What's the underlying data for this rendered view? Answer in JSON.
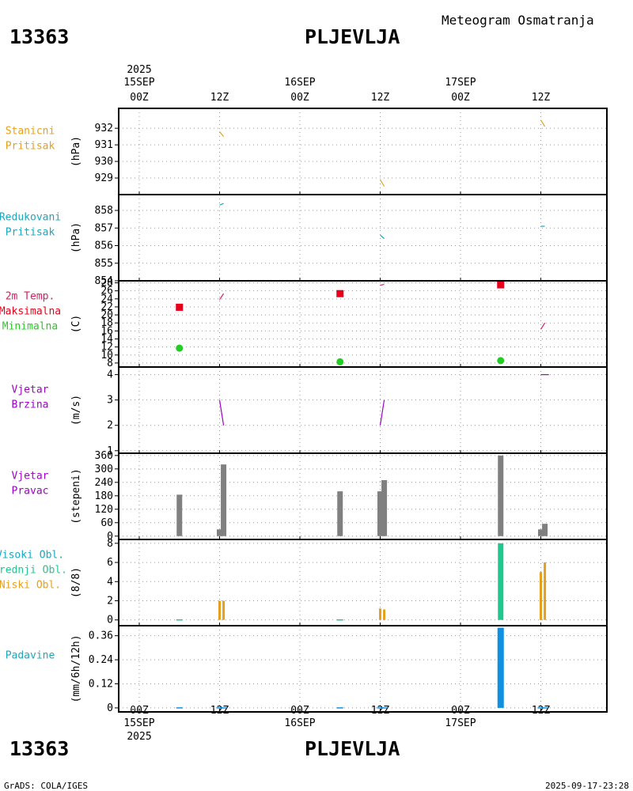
{
  "header": {
    "station_id": "13363",
    "station_name": "PLJEVLJA",
    "subtitle": "Meteogram Osmatranja"
  },
  "footer": {
    "credit": "GrADS: COLA/IGES",
    "timestamp": "2025-09-17-23:28"
  },
  "colors": {
    "orange": "#e6a020",
    "cyan": "#1aa7c0",
    "red": "#e8001a",
    "green": "#22cc22",
    "purple": "#a000c8",
    "gray": "#808080",
    "teal": "#20c890",
    "blue": "#1090e0",
    "crimson": "#d81e5a"
  },
  "chart_data": {
    "type": "meteogram",
    "time_axis": {
      "labels": [
        {
          "hour": 0,
          "line1": "00Z",
          "line2": "15SEP",
          "line3": "2025"
        },
        {
          "hour": 12,
          "line1": "12Z",
          "line2": "",
          "line3": ""
        },
        {
          "hour": 24,
          "line1": "00Z",
          "line2": "16SEP",
          "line3": ""
        },
        {
          "hour": 36,
          "line1": "12Z",
          "line2": "",
          "line3": ""
        },
        {
          "hour": 48,
          "line1": "00Z",
          "line2": "17SEP",
          "line3": ""
        },
        {
          "hour": 60,
          "line1": "12Z",
          "line2": "",
          "line3": ""
        }
      ],
      "top_year": "2025",
      "range_hours": [
        -3,
        70
      ]
    },
    "panels": [
      {
        "id": "station-pressure",
        "labels": [
          {
            "text": "Stanicni",
            "color": "#e6a020"
          },
          {
            "text": "Pritisak",
            "color": "#e6a020"
          }
        ],
        "unit": "(hPa)",
        "ylim": [
          928,
          933.2
        ],
        "yticks": [
          929,
          930,
          931,
          932
        ],
        "segments": [
          {
            "x": [
              12,
              12.6
            ],
            "y": [
              931.8,
              931.5
            ],
            "color": "#e6a020"
          },
          {
            "x": [
              36,
              36.6
            ],
            "y": [
              928.9,
              928.5
            ],
            "color": "#e6a020"
          },
          {
            "x": [
              60,
              60.6
            ],
            "y": [
              932.5,
              932.1
            ],
            "color": "#e6a020"
          }
        ]
      },
      {
        "id": "reduced-pressure",
        "labels": [
          {
            "text": "Redukovani",
            "color": "#1aa7c0"
          },
          {
            "text": "Pritisak",
            "color": "#1aa7c0"
          }
        ],
        "unit": "(hPa)",
        "ylim": [
          854,
          858.9
        ],
        "yticks": [
          854,
          855,
          856,
          857,
          858
        ],
        "segments": [
          {
            "x": [
              12,
              12.6
            ],
            "y": [
              858.3,
              858.4
            ],
            "color": "#1aa7c0"
          },
          {
            "x": [
              36,
              36.6
            ],
            "y": [
              856.6,
              856.4
            ],
            "color": "#1aa7c0"
          },
          {
            "x": [
              60,
              60.6
            ],
            "y": [
              857.1,
              857.1
            ],
            "color": "#1aa7c0"
          }
        ]
      },
      {
        "id": "temperature",
        "labels": [
          {
            "text": "2m Temp.",
            "color": "#d81e5a"
          },
          {
            "text": "Maksimalna",
            "color": "#e8001a"
          },
          {
            "text": "Minimalna",
            "color": "#22cc22"
          }
        ],
        "unit": "(C)",
        "ylim": [
          7,
          28.5
        ],
        "yticks": [
          8,
          10,
          12,
          14,
          16,
          18,
          20,
          22,
          24,
          26,
          28
        ],
        "segments": [
          {
            "x": [
              12,
              12.6
            ],
            "y": [
              23.8,
              25.3
            ],
            "color": "#d81e5a"
          },
          {
            "x": [
              36,
              36.6
            ],
            "y": [
              27.4,
              27.6
            ],
            "color": "#d81e5a"
          },
          {
            "x": [
              60,
              60.6
            ],
            "y": [
              16.4,
              18.0
            ],
            "color": "#d81e5a"
          }
        ],
        "max_points": [
          {
            "x": 6,
            "y": 21.9
          },
          {
            "x": 30,
            "y": 25.3
          },
          {
            "x": 54,
            "y": 27.5
          }
        ],
        "min_points": [
          {
            "x": 6,
            "y": 11.7
          },
          {
            "x": 30,
            "y": 8.3
          },
          {
            "x": 54,
            "y": 8.6
          }
        ]
      },
      {
        "id": "wind-speed",
        "labels": [
          {
            "text": "Vjetar",
            "color": "#a000c8"
          },
          {
            "text": "Brzina",
            "color": "#a000c8"
          }
        ],
        "unit": "(m/s)",
        "ylim": [
          0.9,
          4.3
        ],
        "yticks": [
          1,
          2,
          3,
          4
        ],
        "segments": [
          {
            "x": [
              12,
              12.6
            ],
            "y": [
              3.0,
              2.0
            ],
            "color": "#a000c8"
          },
          {
            "x": [
              36,
              36.6
            ],
            "y": [
              2.0,
              3.0
            ],
            "color": "#a000c8"
          },
          {
            "x": [
              60,
              61.2
            ],
            "y": [
              4.0,
              4.0
            ],
            "color": "#a000c8"
          }
        ]
      },
      {
        "id": "wind-direction",
        "labels": [
          {
            "text": "Vjetar",
            "color": "#a000c8"
          },
          {
            "text": "Pravac",
            "color": "#a000c8"
          }
        ],
        "unit": "(stepeni)",
        "ylim": [
          -15,
          370
        ],
        "yticks": [
          0,
          60,
          120,
          180,
          240,
          300,
          360
        ],
        "bars": [
          {
            "x": 6,
            "value": 185
          },
          {
            "x": 12,
            "value": 30
          },
          {
            "x": 12.6,
            "value": 320
          },
          {
            "x": 30,
            "value": 200
          },
          {
            "x": 36,
            "value": 200
          },
          {
            "x": 36.6,
            "value": 250
          },
          {
            "x": 54,
            "value": 360
          },
          {
            "x": 60,
            "value": 30
          },
          {
            "x": 60.6,
            "value": 55
          }
        ],
        "bar_color": "#808080"
      },
      {
        "id": "cloud-cover",
        "labels": [
          {
            "text": "Visoki Obl.",
            "color": "#1aa7c0"
          },
          {
            "text": "Srednji Obl.",
            "color": "#20c890"
          },
          {
            "text": "Niski Obl.",
            "color": "#e6a020"
          }
        ],
        "unit": "(8/8)",
        "ylim": [
          -0.6,
          8.4
        ],
        "yticks": [
          0,
          2,
          4,
          6,
          8
        ],
        "bars": [
          {
            "x": 12,
            "value": 2,
            "color": "#e6a020",
            "width": 3
          },
          {
            "x": 12.6,
            "value": 2,
            "color": "#e6a020",
            "width": 3
          },
          {
            "x": 36,
            "value": 1.2,
            "color": "#e6a020",
            "width": 3
          },
          {
            "x": 36.6,
            "value": 1.1,
            "color": "#e6a020",
            "width": 3
          },
          {
            "x": 54,
            "value": 8,
            "color": "#20c890",
            "width": 7
          },
          {
            "x": 60,
            "value": 1.1,
            "color": "#1aa7c0",
            "width": 3
          },
          {
            "x": 60,
            "value": 5,
            "color": "#e6a020",
            "width": 3
          },
          {
            "x": 60.6,
            "value": 6,
            "color": "#e6a020",
            "width": 3
          }
        ],
        "zero_ticks": [
          {
            "x": 6,
            "color": "#20c890"
          },
          {
            "x": 30,
            "color": "#20c890"
          }
        ]
      },
      {
        "id": "precipitation",
        "labels": [
          {
            "text": "Padavine",
            "color": "#1aa7c0"
          }
        ],
        "unit": "(mm/6h/12h)",
        "ylim": [
          -0.02,
          0.41
        ],
        "yticks": [
          0,
          0.12,
          0.24,
          0.36
        ],
        "ytick_labels": [
          "0",
          "0.12",
          "0.24",
          "0.36"
        ],
        "bars": [
          {
            "x": 54,
            "value": 0.4,
            "color": "#1090e0",
            "width": 8
          }
        ],
        "zero_ticks": [
          {
            "x": 6,
            "color": "#1090e0"
          },
          {
            "x": 12,
            "color": "#1090e0"
          },
          {
            "x": 12.6,
            "color": "#1090e0"
          },
          {
            "x": 30,
            "color": "#1090e0"
          },
          {
            "x": 36,
            "color": "#1090e0"
          },
          {
            "x": 36.6,
            "color": "#1090e0"
          },
          {
            "x": 60,
            "color": "#1090e0"
          },
          {
            "x": 60.6,
            "color": "#1090e0"
          }
        ]
      }
    ]
  }
}
